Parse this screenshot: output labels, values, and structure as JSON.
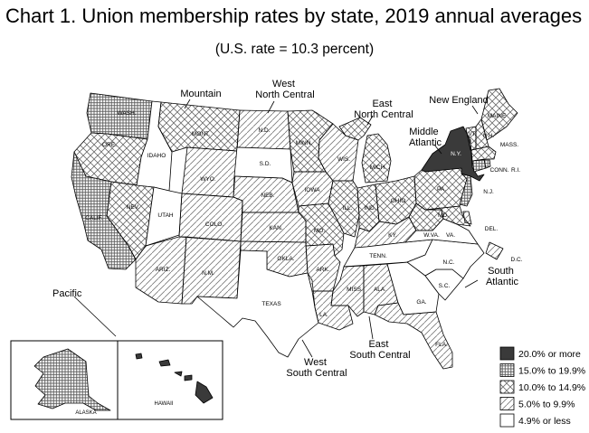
{
  "title": "Chart 1. Union membership rates by state, 2019 annual averages",
  "subtitle": "(U.S. rate = 10.3 percent)",
  "colors": {
    "dark": "#3a3a3a",
    "crosshatch": "#5a5a5a",
    "diamond": "#6b6b6b",
    "diagonal": "#7a7a7a",
    "blank": "#ffffff",
    "outline": "#000000"
  },
  "legend": [
    {
      "label": "20.0% or more",
      "pattern": "dark"
    },
    {
      "label": "15.0% to 19.9%",
      "pattern": "crosshatch"
    },
    {
      "label": "10.0% to 14.9%",
      "pattern": "diamond"
    },
    {
      "label": "5.0% to 9.9%",
      "pattern": "diagonal"
    },
    {
      "label": "4.9% or less",
      "pattern": "blank"
    }
  ],
  "regions": [
    {
      "id": "mountain",
      "label": "Mountain"
    },
    {
      "id": "wnc",
      "label": "West\nNorth Central"
    },
    {
      "id": "enc",
      "label": "East\nNorth Central"
    },
    {
      "id": "ne",
      "label": "New England"
    },
    {
      "id": "ma",
      "label": "Middle\nAtlantic"
    },
    {
      "id": "pacific",
      "label": "Pacific"
    },
    {
      "id": "sa",
      "label": "South\nAtlantic"
    },
    {
      "id": "wsc",
      "label": "West\nSouth Central"
    },
    {
      "id": "esc",
      "label": "East\nSouth Central"
    }
  ],
  "states": [
    {
      "id": "wa",
      "label": "WASH.",
      "pattern": "crosshatch"
    },
    {
      "id": "or",
      "label": "ORE.",
      "pattern": "diamond"
    },
    {
      "id": "ca",
      "label": "CALIF.",
      "pattern": "crosshatch"
    },
    {
      "id": "nv",
      "label": "NEV.",
      "pattern": "diamond"
    },
    {
      "id": "id",
      "label": "IDAHO",
      "pattern": "blank"
    },
    {
      "id": "mt",
      "label": "MONT.",
      "pattern": "diamond"
    },
    {
      "id": "wy",
      "label": "WYO.",
      "pattern": "diagonal"
    },
    {
      "id": "ut",
      "label": "UTAH",
      "pattern": "blank"
    },
    {
      "id": "co",
      "label": "COLO.",
      "pattern": "diagonal"
    },
    {
      "id": "az",
      "label": "ARIZ.",
      "pattern": "diagonal"
    },
    {
      "id": "nm",
      "label": "N.M.",
      "pattern": "diagonal"
    },
    {
      "id": "nd",
      "label": "N.D.",
      "pattern": "diagonal"
    },
    {
      "id": "sd",
      "label": "S.D.",
      "pattern": "blank"
    },
    {
      "id": "ne_st",
      "label": "NEB.",
      "pattern": "diagonal"
    },
    {
      "id": "ks",
      "label": "KAN.",
      "pattern": "diagonal"
    },
    {
      "id": "mn",
      "label": "MINN.",
      "pattern": "diamond"
    },
    {
      "id": "ia",
      "label": "IOWA",
      "pattern": "diagonal"
    },
    {
      "id": "mo",
      "label": "MO.",
      "pattern": "diamond"
    },
    {
      "id": "ok",
      "label": "OKLA.",
      "pattern": "diagonal"
    },
    {
      "id": "tx",
      "label": "TEXAS",
      "pattern": "blank"
    },
    {
      "id": "ar",
      "label": "ARK.",
      "pattern": "diagonal"
    },
    {
      "id": "la",
      "label": "LA.",
      "pattern": "diagonal"
    },
    {
      "id": "wi",
      "label": "WIS.",
      "pattern": "diagonal"
    },
    {
      "id": "mi",
      "label": "MICH.",
      "pattern": "diamond"
    },
    {
      "id": "il",
      "label": "ILL.",
      "pattern": "diamond"
    },
    {
      "id": "in",
      "label": "IND.",
      "pattern": "diamond"
    },
    {
      "id": "oh",
      "label": "OHIO",
      "pattern": "diamond"
    },
    {
      "id": "ky",
      "label": "KY.",
      "pattern": "diagonal"
    },
    {
      "id": "tn",
      "label": "TENN.",
      "pattern": "blank"
    },
    {
      "id": "ms",
      "label": "MISS.",
      "pattern": "diagonal"
    },
    {
      "id": "al",
      "label": "ALA.",
      "pattern": "diagonal"
    },
    {
      "id": "ga",
      "label": "GA.",
      "pattern": "blank"
    },
    {
      "id": "fl",
      "label": "FLA.",
      "pattern": "diagonal"
    },
    {
      "id": "sc",
      "label": "S.C.",
      "pattern": "blank"
    },
    {
      "id": "nc",
      "label": "N.C.",
      "pattern": "blank"
    },
    {
      "id": "va",
      "label": "VA.",
      "pattern": "blank"
    },
    {
      "id": "wv",
      "label": "W.VA.",
      "pattern": "diamond"
    },
    {
      "id": "md",
      "label": "MD.",
      "pattern": "diamond"
    },
    {
      "id": "de",
      "label": "DEL.",
      "pattern": "diagonal"
    },
    {
      "id": "dc",
      "label": "D.C.",
      "pattern": "diagonal"
    },
    {
      "id": "pa",
      "label": "PA.",
      "pattern": "diamond"
    },
    {
      "id": "nj",
      "label": "N.J.",
      "pattern": "crosshatch"
    },
    {
      "id": "ny",
      "label": "N.Y.",
      "pattern": "dark"
    },
    {
      "id": "ct",
      "label": "CONN.",
      "pattern": "crosshatch"
    },
    {
      "id": "ri",
      "label": "R.I.",
      "pattern": "crosshatch"
    },
    {
      "id": "ma_st",
      "label": "MASS.",
      "pattern": "diamond"
    },
    {
      "id": "vt",
      "label": "VT.",
      "pattern": "diamond"
    },
    {
      "id": "nh",
      "label": "N.H.",
      "pattern": "diamond"
    },
    {
      "id": "me",
      "label": "MAINE",
      "pattern": "diamond"
    },
    {
      "id": "ak",
      "label": "ALASKA",
      "pattern": "crosshatch"
    },
    {
      "id": "hi",
      "label": "HAWAII",
      "pattern": "dark"
    }
  ]
}
